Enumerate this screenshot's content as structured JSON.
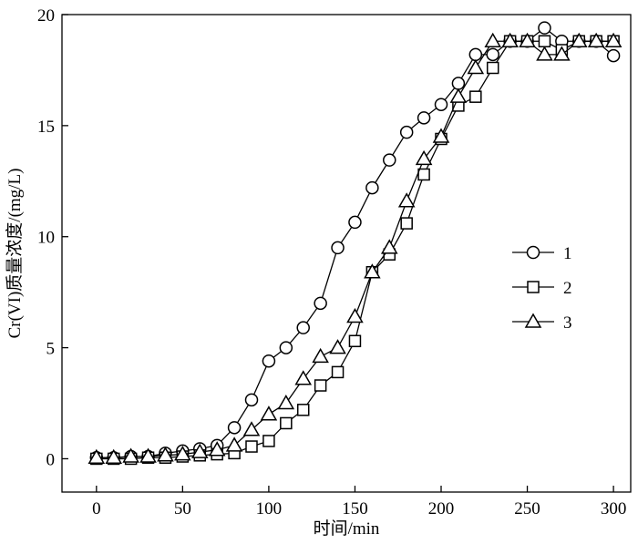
{
  "chart_data": {
    "type": "line",
    "title": "",
    "xlabel": "时间/min",
    "ylabel": "Cr(VI)质量浓度/(mg/L)",
    "xlim": [
      -20,
      310
    ],
    "ylim": [
      -1.5,
      20
    ],
    "xticks": [
      0,
      50,
      100,
      150,
      200,
      250,
      300
    ],
    "yticks": [
      0,
      5,
      10,
      15,
      20
    ],
    "grid": false,
    "legend": "center-right",
    "series": [
      {
        "name": "1",
        "marker": "circle",
        "x": [
          0,
          10,
          20,
          30,
          40,
          50,
          60,
          70,
          80,
          90,
          100,
          110,
          120,
          130,
          140,
          150,
          160,
          170,
          180,
          190,
          200,
          210,
          220,
          230,
          240,
          250,
          260,
          270,
          280,
          290,
          300
        ],
        "y": [
          0.05,
          0.05,
          0.1,
          0.1,
          0.25,
          0.35,
          0.45,
          0.6,
          1.4,
          2.65,
          4.4,
          5.0,
          5.9,
          7.0,
          9.5,
          10.65,
          12.2,
          13.45,
          14.7,
          15.35,
          15.95,
          16.9,
          18.2,
          18.2,
          18.8,
          18.8,
          19.4,
          18.8,
          18.8,
          18.8,
          18.15
        ]
      },
      {
        "name": "2",
        "marker": "square",
        "x": [
          0,
          10,
          20,
          30,
          40,
          50,
          60,
          70,
          80,
          90,
          100,
          110,
          120,
          130,
          140,
          150,
          160,
          170,
          180,
          190,
          200,
          210,
          220,
          230,
          240,
          250,
          260,
          270,
          280,
          290,
          300
        ],
        "y": [
          0.0,
          0.0,
          0.0,
          0.05,
          0.05,
          0.1,
          0.15,
          0.2,
          0.25,
          0.55,
          0.8,
          1.6,
          2.2,
          3.3,
          3.9,
          5.3,
          8.4,
          9.2,
          10.6,
          12.8,
          14.4,
          15.9,
          16.3,
          17.6,
          18.8,
          18.8,
          18.8,
          18.4,
          18.8,
          18.8,
          18.8
        ]
      },
      {
        "name": "3",
        "marker": "triangle",
        "x": [
          0,
          10,
          20,
          30,
          40,
          50,
          60,
          70,
          80,
          90,
          100,
          110,
          120,
          130,
          140,
          150,
          160,
          170,
          180,
          190,
          200,
          210,
          220,
          230,
          240,
          250,
          260,
          270,
          280,
          290,
          300
        ],
        "y": [
          0.05,
          0.05,
          0.1,
          0.1,
          0.15,
          0.2,
          0.3,
          0.4,
          0.6,
          1.3,
          2.0,
          2.5,
          3.6,
          4.6,
          5.0,
          6.4,
          8.4,
          9.5,
          11.6,
          13.5,
          14.5,
          16.3,
          17.6,
          18.8,
          18.8,
          18.8,
          18.2,
          18.2,
          18.8,
          18.8,
          18.8
        ]
      }
    ]
  }
}
